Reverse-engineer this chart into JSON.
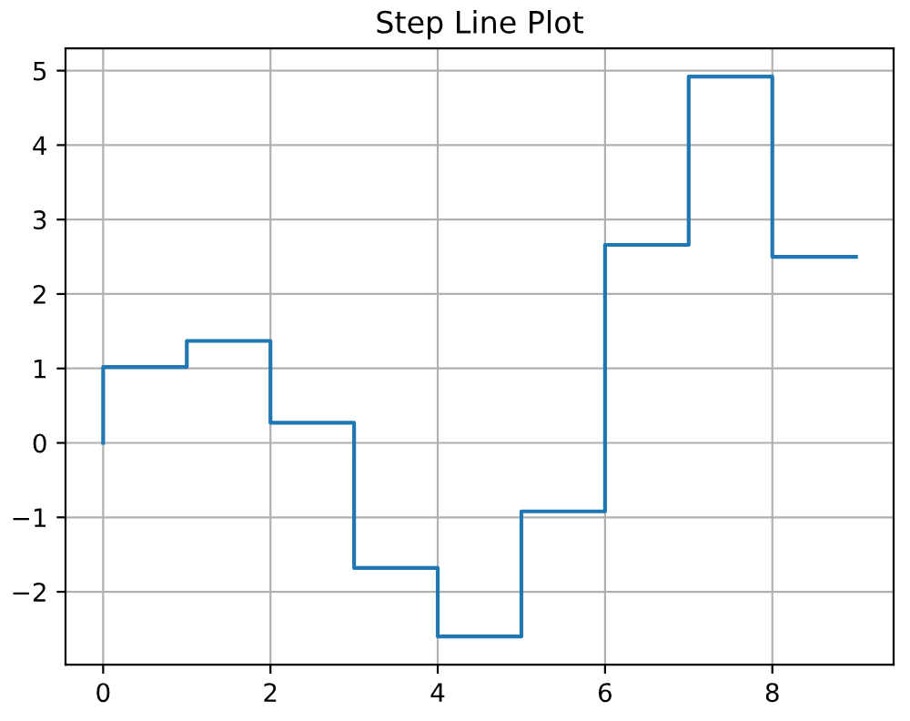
{
  "chart_data": {
    "type": "step",
    "title": "Step Line Plot",
    "x": [
      0,
      1,
      2,
      3,
      4,
      5,
      6,
      7,
      8,
      9
    ],
    "series": [
      {
        "color": "#1f77b4",
        "values": [
          0,
          1.02,
          1.37,
          0.27,
          -1.68,
          -2.6,
          -0.92,
          2.66,
          4.92,
          2.5
        ]
      }
    ],
    "xlim": [
      -0.45,
      9.45
    ],
    "ylim": [
      -2.98,
      5.3
    ],
    "xticks": [
      0,
      2,
      4,
      6,
      8
    ],
    "yticks": [
      -2,
      -1,
      0,
      1,
      2,
      3,
      4,
      5
    ],
    "grid": true
  }
}
